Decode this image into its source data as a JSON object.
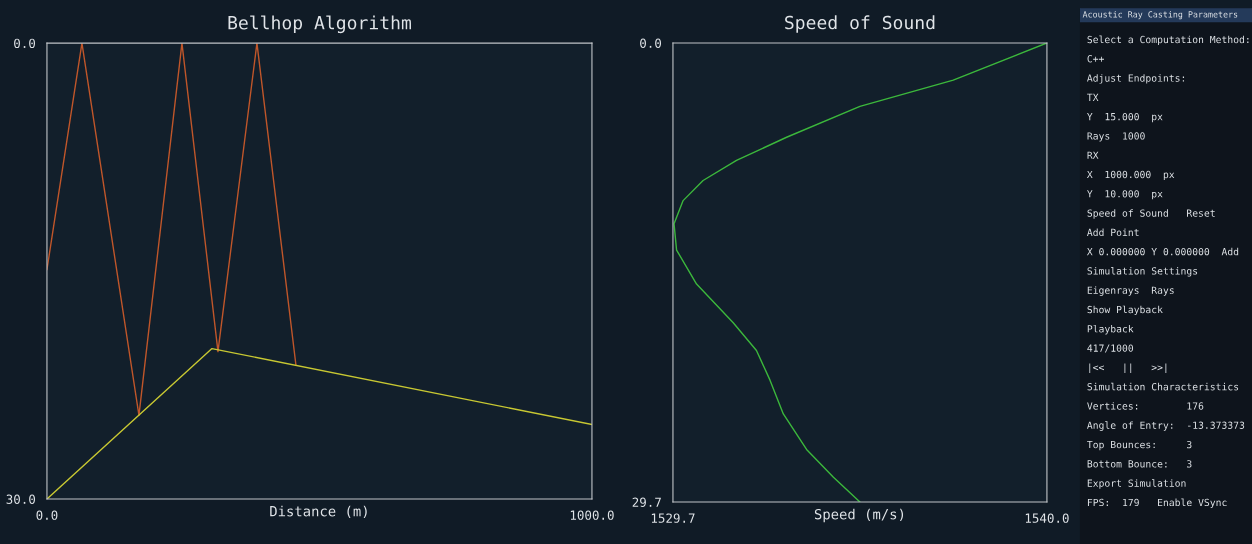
{
  "chart_data": [
    {
      "type": "line",
      "title": "Bellhop Algorithm",
      "xlabel": "Distance (m)",
      "xlim": [
        0,
        1000
      ],
      "ylim": [
        30,
        0
      ],
      "xticks": [
        {
          "value": 0,
          "label": "0.0"
        },
        {
          "value": 1000,
          "label": "1000.0"
        }
      ],
      "yticks": [
        {
          "value": 0,
          "label": "0.0"
        },
        {
          "value": 30,
          "label": "30.0"
        }
      ],
      "grid": false,
      "legend": false,
      "series": [
        {
          "color": "#c0562a",
          "x": [
            0,
            64.2,
            168.8,
            247.7,
            313.8,
            385.3,
            456.9
          ],
          "values": [
            14.9,
            0,
            24.5,
            0,
            20.3,
            0,
            21.2
          ]
        },
        {
          "color": "#c8c832",
          "x": [
            0,
            302.8,
            1000
          ],
          "values": [
            30,
            20.1,
            25.1
          ]
        }
      ]
    },
    {
      "type": "line",
      "title": "Speed of Sound",
      "xlabel": "Speed (m/s)",
      "xlim": [
        1529.7,
        1540.0
      ],
      "ylim": [
        29.7,
        0
      ],
      "xticks": [
        {
          "value": 1529.7,
          "label": "1529.7"
        },
        {
          "value": 1540.0,
          "label": "1540.0"
        }
      ],
      "yticks": [
        {
          "value": 0,
          "label": "0.0"
        },
        {
          "value": 29.7,
          "label": "29.7"
        }
      ],
      "grid": false,
      "legend": false,
      "series": [
        {
          "color": "#3cb83c",
          "x": [
            1540.0,
            1537.42,
            1534.85,
            1532.83,
            1531.45,
            1530.53,
            1529.98,
            1529.73,
            1529.8,
            1530.35,
            1531.36,
            1532.0,
            1532.37,
            1532.74,
            1533.38,
            1534.12,
            1534.85
          ],
          "values": [
            0,
            2.4,
            4.1,
            6.1,
            7.6,
            8.9,
            10.2,
            11.7,
            13.4,
            15.6,
            18.1,
            19.9,
            21.8,
            24.0,
            26.3,
            28.1,
            29.7
          ]
        }
      ]
    },
    {
      "type": "other",
      "title": "Acoustic Ray Casting Parameters",
      "annotations": [
        "Select a Computation Method:",
        "C++",
        "Adjust Endpoints:",
        "TX",
        "Y  15.000  px",
        "Rays  1000",
        "RX",
        "X  1000.000  px",
        "Y  10.000  px",
        "Speed of Sound   Reset",
        "Add Point",
        "X 0.000000 Y 0.000000  Add",
        "Simulation Settings",
        "Eigenrays  Rays",
        "Show Playback",
        "Playback",
        "417/1000",
        "|<<   ||   >>|",
        "Simulation Characteristics",
        "Vertices:        176",
        "Angle of Entry:  -13.373373",
        "Top Bounces:     3",
        "Bottom Bounce:   3",
        "Export Simulation",
        "FPS:  179   Enable VSync"
      ]
    }
  ]
}
